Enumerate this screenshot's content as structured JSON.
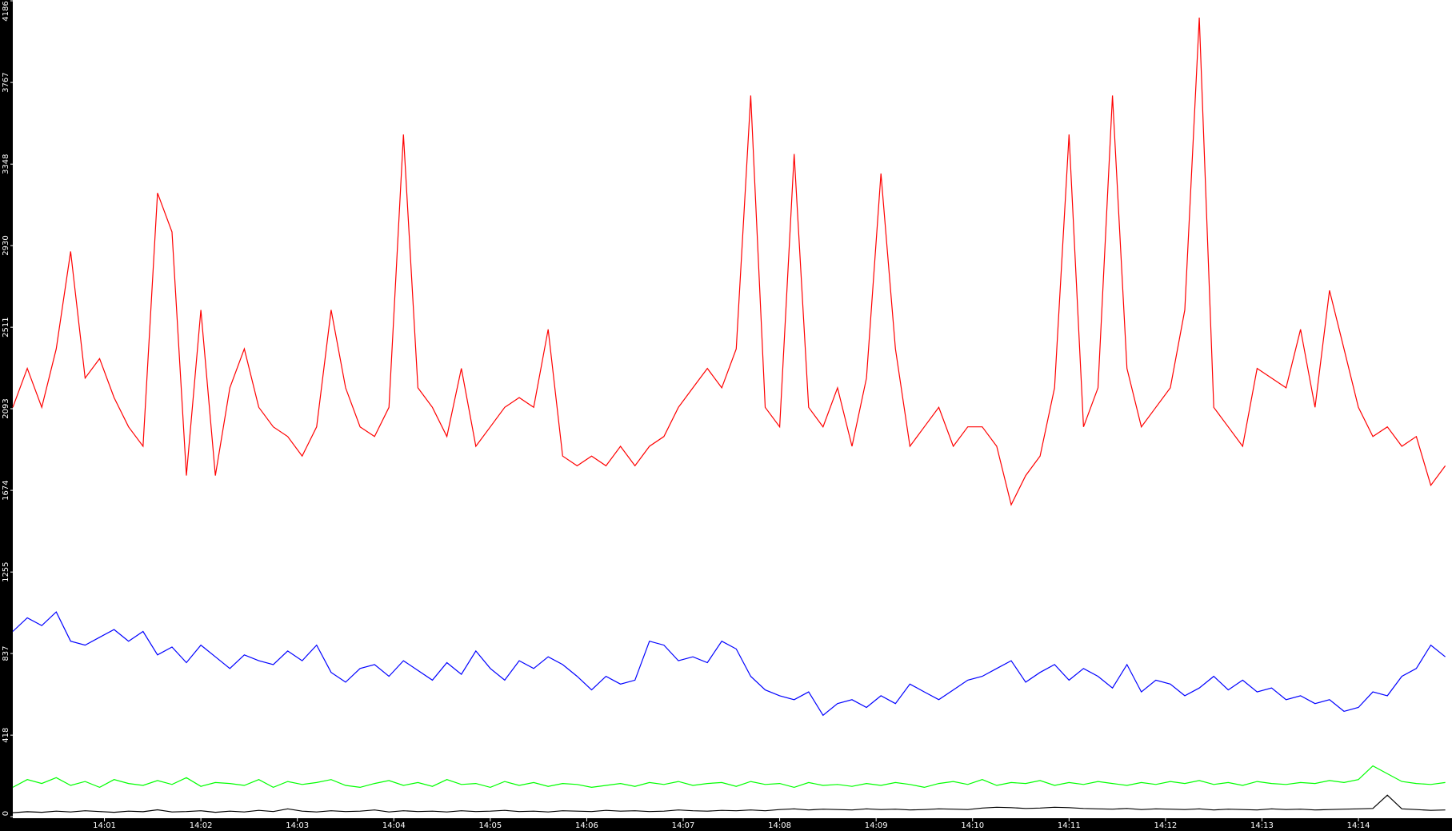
{
  "chart_data": {
    "type": "line",
    "x": [
      0.05,
      0.2,
      0.35,
      0.5,
      0.65,
      0.8,
      0.95,
      1.1,
      1.25,
      1.4,
      1.55,
      1.7,
      1.85,
      2,
      2.15,
      2.3,
      2.45,
      2.6,
      2.75,
      2.9,
      3.05,
      3.2,
      3.35,
      3.5,
      3.65,
      3.8,
      3.95,
      4.1,
      4.25,
      4.4,
      4.55,
      4.7,
      4.85,
      5,
      5.15,
      5.3,
      5.45,
      5.6,
      5.75,
      5.9,
      6.05,
      6.2,
      6.35,
      6.5,
      6.65,
      6.8,
      6.95,
      7.1,
      7.25,
      7.4,
      7.55,
      7.7,
      7.85,
      8,
      8.15,
      8.3,
      8.45,
      8.6,
      8.75,
      8.9,
      9.05,
      9.2,
      9.35,
      9.5,
      9.65,
      9.8,
      9.95,
      10.1,
      10.25,
      10.4,
      10.55,
      10.7,
      10.85,
      11,
      11.15,
      11.3,
      11.45,
      11.6,
      11.75,
      11.9,
      12.05,
      12.2,
      12.35,
      12.5,
      12.65,
      12.8,
      12.95,
      13.1,
      13.25,
      13.4,
      13.55,
      13.7,
      13.85,
      14,
      14.15,
      14.3,
      14.45,
      14.6,
      14.75,
      14.9
    ],
    "series": [
      {
        "color": "#ff0000",
        "values": [
          2100,
          2300,
          2100,
          2400,
          2900,
          2250,
          2350,
          2150,
          2000,
          1900,
          3200,
          3000,
          1750,
          2600,
          1750,
          2200,
          2400,
          2100,
          2000,
          1950,
          1850,
          2000,
          2600,
          2200,
          2000,
          1950,
          2100,
          3500,
          2200,
          2100,
          1950,
          2300,
          1900,
          2000,
          2100,
          2150,
          2100,
          2500,
          1850,
          1800,
          1850,
          1800,
          1900,
          1800,
          1900,
          1950,
          2100,
          2200,
          2300,
          2200,
          2400,
          3700,
          2100,
          2000,
          3400,
          2100,
          2000,
          2200,
          1900,
          2250,
          3300,
          2400,
          1900,
          2000,
          2100,
          1900,
          2000,
          2000,
          1900,
          1600,
          1750,
          1850,
          2200,
          3500,
          2000,
          2200,
          3700,
          2300,
          2000,
          2100,
          2200,
          2600,
          4100,
          2100,
          2000,
          1900,
          2300,
          2250,
          2200,
          2500,
          2100,
          2700,
          2400,
          2100,
          1950,
          2000,
          1900,
          1950,
          1700,
          1800
        ]
      },
      {
        "color": "#0000ff",
        "values": [
          950,
          1020,
          980,
          1050,
          900,
          880,
          920,
          960,
          900,
          950,
          830,
          870,
          790,
          880,
          820,
          760,
          830,
          800,
          780,
          850,
          800,
          880,
          740,
          690,
          760,
          780,
          720,
          800,
          750,
          700,
          790,
          730,
          850,
          760,
          700,
          800,
          760,
          820,
          780,
          720,
          650,
          720,
          680,
          700,
          900,
          880,
          800,
          820,
          790,
          900,
          860,
          720,
          650,
          620,
          600,
          640,
          520,
          580,
          600,
          560,
          620,
          580,
          680,
          640,
          600,
          650,
          700,
          720,
          760,
          800,
          690,
          740,
          780,
          700,
          760,
          720,
          660,
          780,
          640,
          700,
          680,
          620,
          660,
          720,
          650,
          700,
          640,
          660,
          600,
          620,
          580,
          600,
          540,
          560,
          640,
          620,
          720,
          760,
          880,
          820
        ]
      },
      {
        "color": "#00ff00",
        "values": [
          150,
          190,
          170,
          200,
          160,
          180,
          150,
          190,
          170,
          160,
          185,
          165,
          200,
          155,
          175,
          170,
          160,
          190,
          150,
          180,
          165,
          175,
          190,
          160,
          150,
          170,
          185,
          160,
          175,
          155,
          190,
          165,
          170,
          150,
          180,
          160,
          175,
          155,
          170,
          165,
          150,
          160,
          170,
          155,
          175,
          165,
          180,
          160,
          170,
          175,
          155,
          180,
          165,
          170,
          150,
          175,
          160,
          165,
          155,
          170,
          160,
          175,
          165,
          150,
          170,
          180,
          165,
          190,
          160,
          175,
          170,
          185,
          160,
          175,
          165,
          180,
          170,
          160,
          175,
          165,
          180,
          170,
          185,
          165,
          175,
          160,
          180,
          170,
          165,
          175,
          170,
          185,
          175,
          190,
          260,
          220,
          180,
          170,
          165,
          175
        ]
      },
      {
        "color": "#000000",
        "values": [
          20,
          25,
          22,
          28,
          24,
          30,
          26,
          22,
          28,
          25,
          35,
          24,
          26,
          30,
          22,
          28,
          24,
          32,
          26,
          40,
          28,
          24,
          30,
          26,
          28,
          34,
          24,
          30,
          26,
          28,
          24,
          30,
          26,
          28,
          32,
          26,
          28,
          24,
          30,
          28,
          26,
          32,
          28,
          30,
          26,
          28,
          34,
          30,
          28,
          32,
          30,
          34,
          30,
          36,
          40,
          34,
          38,
          36,
          34,
          40,
          36,
          38,
          34,
          36,
          40,
          38,
          36,
          44,
          48,
          46,
          42,
          44,
          48,
          46,
          42,
          40,
          38,
          42,
          36,
          40,
          38,
          36,
          40,
          34,
          38,
          36,
          34,
          40,
          36,
          38,
          34,
          36,
          38,
          40,
          42,
          110,
          40,
          36,
          32,
          34
        ]
      }
    ],
    "xlim": [
      0.05,
      14.97
    ],
    "ylim": [
      0,
      4186
    ],
    "xticks": [
      {
        "value": 1,
        "label": "14:01"
      },
      {
        "value": 2,
        "label": "14:02"
      },
      {
        "value": 3,
        "label": "14:03"
      },
      {
        "value": 4,
        "label": "14:04"
      },
      {
        "value": 5,
        "label": "14:05"
      },
      {
        "value": 6,
        "label": "14:06"
      },
      {
        "value": 7,
        "label": "14:07"
      },
      {
        "value": 8,
        "label": "14:08"
      },
      {
        "value": 9,
        "label": "14:09"
      },
      {
        "value": 10,
        "label": "14:10"
      },
      {
        "value": 11,
        "label": "14:11"
      },
      {
        "value": 12,
        "label": "14:12"
      },
      {
        "value": 13,
        "label": "14:13"
      },
      {
        "value": 14,
        "label": "14:14"
      }
    ],
    "yticks": [
      0,
      418,
      837,
      1255,
      1674,
      2093,
      2511,
      2930,
      3348,
      3767,
      4186
    ]
  }
}
